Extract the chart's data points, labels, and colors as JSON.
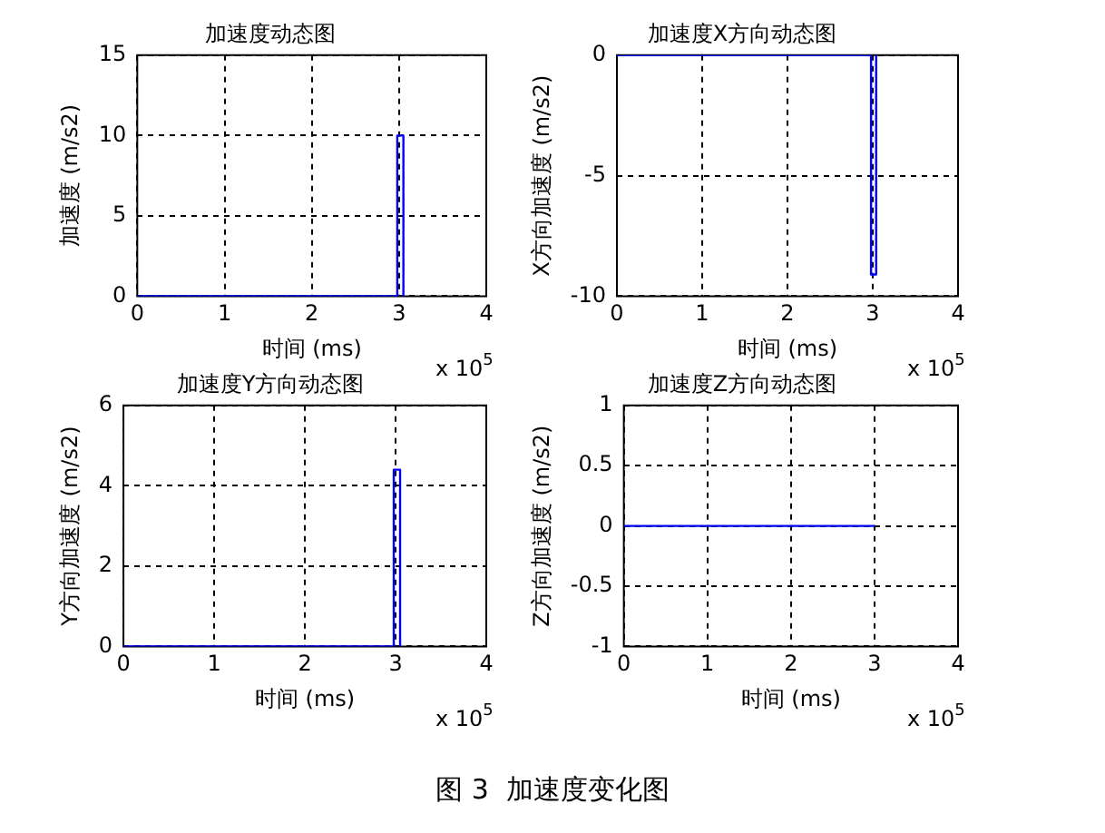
{
  "chart_data": [
    {
      "type": "line",
      "title": "加速度动态图",
      "xlabel": "时间 (ms)",
      "ylabel": "加速度 (m/s2)",
      "x": [
        0,
        2.98,
        2.98,
        3.05,
        3.05
      ],
      "values": [
        0,
        0,
        10,
        10,
        0
      ],
      "color": "#0000ff",
      "line_style": "solid",
      "xlim": [
        0,
        4
      ],
      "xticks": [
        0,
        1,
        2,
        3,
        4
      ],
      "ylim": [
        0,
        15
      ],
      "yticks": [
        0,
        5,
        10,
        15
      ],
      "grid": true,
      "annotations": [
        "x 10$^{5}$"
      ]
    },
    {
      "type": "line",
      "title": "加速度X方向动态图",
      "xlabel": "时间 (ms)",
      "ylabel": "X方向加速度 (m/s2)",
      "x": [
        0,
        2.98,
        2.98,
        3.04,
        3.04
      ],
      "values": [
        0,
        0,
        -9.1,
        -9.1,
        0
      ],
      "color": "#0000ff",
      "line_style": "solid",
      "xlim": [
        0,
        4
      ],
      "xticks": [
        0,
        1,
        2,
        3,
        4
      ],
      "ylim": [
        -10,
        0
      ],
      "yticks": [
        -10,
        -5,
        0
      ],
      "grid": true,
      "annotations": [
        "x 10$^{5}$"
      ]
    },
    {
      "type": "line",
      "title": "加速度Y方向动态图",
      "xlabel": "时间 (ms)",
      "ylabel": "Y方向加速度 (m/s2)",
      "x": [
        0,
        2.98,
        2.98,
        3.05,
        3.05
      ],
      "values": [
        0,
        0,
        4.4,
        4.4,
        0
      ],
      "color": "#0000ff",
      "line_style": "solid",
      "xlim": [
        0,
        4
      ],
      "xticks": [
        0,
        1,
        2,
        3,
        4
      ],
      "ylim": [
        0,
        6
      ],
      "yticks": [
        0,
        2,
        4,
        6
      ],
      "grid": true,
      "annotations": [
        "x 10$^{5}$"
      ]
    },
    {
      "type": "line",
      "title": "加速度Z方向动态图",
      "xlabel": "时间 (ms)",
      "ylabel": "Z方向加速度 (m/s2)",
      "x": [
        0,
        3
      ],
      "values": [
        0,
        0
      ],
      "color": "#0000ff",
      "line_style": "solid",
      "xlim": [
        0,
        4
      ],
      "xticks": [
        0,
        1,
        2,
        3,
        4
      ],
      "ylim": [
        -1,
        1
      ],
      "yticks": [
        -1,
        -0.5,
        0,
        0.5,
        1
      ],
      "grid": true,
      "annotations": [
        "x 10$^{5}$",
        "图 3  加速度变化图"
      ]
    }
  ]
}
